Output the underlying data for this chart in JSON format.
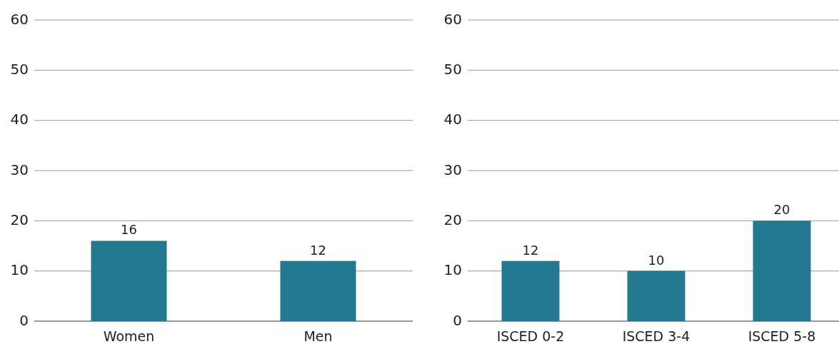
{
  "chart_data": [
    {
      "type": "bar",
      "categories": [
        "Women",
        "Men"
      ],
      "values": [
        16,
        12
      ],
      "color": "#237892",
      "ylim": [
        0,
        60
      ],
      "yticks": [
        0,
        10,
        20,
        30,
        40,
        50,
        60
      ],
      "grid": "y",
      "data_labels": true
    },
    {
      "type": "bar",
      "categories": [
        "ISCED 0-2",
        "ISCED 3-4",
        "ISCED 5-8"
      ],
      "values": [
        12,
        10,
        20
      ],
      "color": "#237892",
      "ylim": [
        0,
        60
      ],
      "yticks": [
        0,
        10,
        20,
        30,
        40,
        50,
        60
      ],
      "grid": "y",
      "data_labels": true
    }
  ]
}
